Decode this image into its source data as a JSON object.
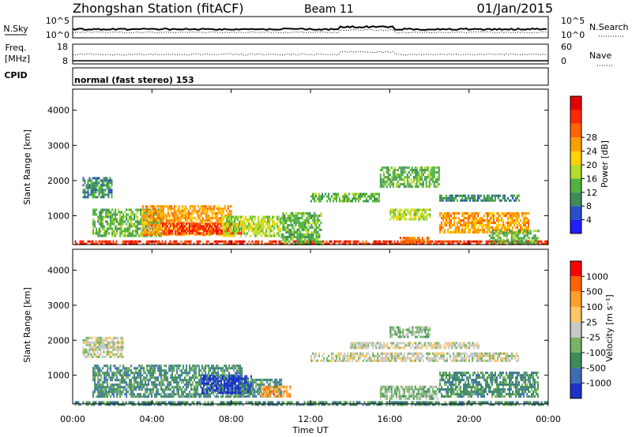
{
  "header": {
    "station": "Zhongshan Station (fitACF)",
    "beam": "Beam 11",
    "date": "01/Jan/2015"
  },
  "top_panels": {
    "nsky_label": "N.Sky",
    "nsearch_label": "N.Search",
    "nsky_ticks": [
      "10^5",
      "10^0"
    ],
    "nsearch_ticks": [
      "10^5",
      "10^0"
    ],
    "freq_label": "Freq.",
    "freq_unit": "[MHz]",
    "freq_ticks": [
      "18",
      "8"
    ],
    "nave_label": "Nave",
    "nave_ticks": [
      "60",
      "0"
    ],
    "cpid_label": "CPID",
    "cpid_text": "normal (fast stereo) 153"
  },
  "chart_data": [
    {
      "type": "heatmap",
      "name": "power",
      "ylabel": "Slant Range [km]",
      "xlabel": "Time UT",
      "x_ticks": [
        "00:00",
        "04:00",
        "08:00",
        "12:00",
        "16:00",
        "20:00",
        "00:00"
      ],
      "y_ticks": [
        "1000",
        "2000",
        "3000",
        "4000"
      ],
      "ylim": [
        180,
        4600
      ],
      "xlim_hours": [
        0,
        24
      ],
      "colorbar": {
        "label": "Power [dB]",
        "ticks": [
          "4",
          "8",
          "12",
          "16",
          "20",
          "24",
          "28"
        ],
        "colors": [
          "#1e1eff",
          "#2850c8",
          "#3c8c5a",
          "#50b43c",
          "#b4dc28",
          "#ffd200",
          "#ffa000",
          "#ff6400",
          "#ff2800",
          "#e60000"
        ]
      },
      "echo_regions": [
        {
          "t0": 0.1,
          "t1": 24,
          "r0": 180,
          "r1": 300,
          "level": 8
        },
        {
          "t0": 0.5,
          "t1": 2.0,
          "r0": 1500,
          "r1": 2100,
          "level": 2
        },
        {
          "t0": 1.0,
          "t1": 4.5,
          "r0": 400,
          "r1": 1200,
          "level": 3
        },
        {
          "t0": 3.5,
          "t1": 8.0,
          "r0": 450,
          "r1": 1300,
          "level": 6
        },
        {
          "t0": 4.5,
          "t1": 8.5,
          "r0": 500,
          "r1": 800,
          "level": 8
        },
        {
          "t0": 7.5,
          "t1": 10.5,
          "r0": 400,
          "r1": 1000,
          "level": 4
        },
        {
          "t0": 10.5,
          "t1": 12.5,
          "r0": 200,
          "r1": 1100,
          "level": 3
        },
        {
          "t0": 12.0,
          "t1": 15.5,
          "r0": 1400,
          "r1": 1650,
          "level": 3
        },
        {
          "t0": 15.5,
          "t1": 18.5,
          "r0": 1800,
          "r1": 2400,
          "level": 3
        },
        {
          "t0": 16.0,
          "t1": 18.0,
          "r0": 900,
          "r1": 1200,
          "level": 4
        },
        {
          "t0": 16.5,
          "t1": 18.0,
          "r0": 200,
          "r1": 400,
          "level": 7
        },
        {
          "t0": 18.5,
          "t1": 23.0,
          "r0": 500,
          "r1": 1100,
          "level": 6
        },
        {
          "t0": 18.5,
          "t1": 22.5,
          "r0": 1400,
          "r1": 1600,
          "level": 2
        },
        {
          "t0": 21.0,
          "t1": 23.5,
          "r0": 250,
          "r1": 600,
          "level": 3
        }
      ]
    },
    {
      "type": "heatmap",
      "name": "velocity",
      "ylabel": "Slant Range [km]",
      "xlabel": "Time UT",
      "x_ticks": [
        "00:00",
        "04:00",
        "08:00",
        "12:00",
        "16:00",
        "20:00",
        "00:00"
      ],
      "y_ticks": [
        "1000",
        "2000",
        "3000",
        "4000"
      ],
      "ylim": [
        180,
        4600
      ],
      "xlim_hours": [
        0,
        24
      ],
      "colorbar": {
        "label": "Velocity [m s⁻¹]",
        "ticks": [
          "1000",
          "500",
          "100",
          "25",
          "-25",
          "-100",
          "-500",
          "-1000"
        ],
        "colors": [
          "#1e32c8",
          "#3c6eb4",
          "#3c8c5a",
          "#78b464",
          "#c8c8c8",
          "#ffc864",
          "#ffa028",
          "#ff6400",
          "#ff0000"
        ]
      },
      "echo_regions": [
        {
          "t0": 0.5,
          "t1": 2.5,
          "r0": 1500,
          "r1": 2100,
          "level": 4
        },
        {
          "t0": 1.0,
          "t1": 8.5,
          "r0": 400,
          "r1": 1300,
          "level": 2
        },
        {
          "t0": 6.5,
          "t1": 9.0,
          "r0": 500,
          "r1": 1000,
          "level": 0
        },
        {
          "t0": 8.5,
          "t1": 10.5,
          "r0": 400,
          "r1": 900,
          "level": 2
        },
        {
          "t0": 9.5,
          "t1": 11.0,
          "r0": 400,
          "r1": 700,
          "level": 6
        },
        {
          "t0": 12.0,
          "t1": 22.5,
          "r0": 1400,
          "r1": 1650,
          "level": 4
        },
        {
          "t0": 14.0,
          "t1": 20.5,
          "r0": 1800,
          "r1": 1950,
          "level": 4
        },
        {
          "t0": 16.0,
          "t1": 18.0,
          "r0": 2100,
          "r1": 2400,
          "level": 3
        },
        {
          "t0": 15.5,
          "t1": 18.5,
          "r0": 300,
          "r1": 700,
          "level": 3
        },
        {
          "t0": 18.5,
          "t1": 23.5,
          "r0": 400,
          "r1": 1100,
          "level": 2
        },
        {
          "t0": 0.1,
          "t1": 24,
          "r0": 180,
          "r1": 260,
          "level": 2
        }
      ]
    }
  ]
}
